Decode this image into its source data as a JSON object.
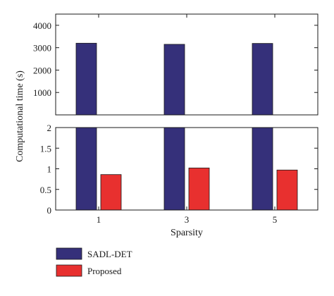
{
  "chart_data": {
    "type": "bar",
    "layout": "broken-axis",
    "categories": [
      "1",
      "3",
      "5"
    ],
    "series": [
      {
        "name": "SADL-DET",
        "color": "#35307a",
        "values": [
          3200,
          3150,
          3190
        ]
      },
      {
        "name": "Proposed",
        "color": "#e8302f",
        "values": [
          0.86,
          1.02,
          0.97
        ]
      }
    ],
    "xlabel": "Sparsity",
    "ylabel": "Computational time (s)",
    "top_panel": {
      "ylim": [
        0,
        4500
      ],
      "ticks": [
        1000,
        2000,
        3000,
        4000
      ],
      "tick_labels": [
        "1000",
        "2000",
        "3000",
        "4000"
      ]
    },
    "bottom_panel": {
      "ylim": [
        0,
        2
      ],
      "ticks": [
        0,
        0.5,
        1,
        1.5,
        2
      ],
      "tick_labels": [
        "0",
        "0.5",
        "1",
        "1.5",
        "2"
      ]
    },
    "grid": false,
    "legend_position": "bottom-left"
  }
}
